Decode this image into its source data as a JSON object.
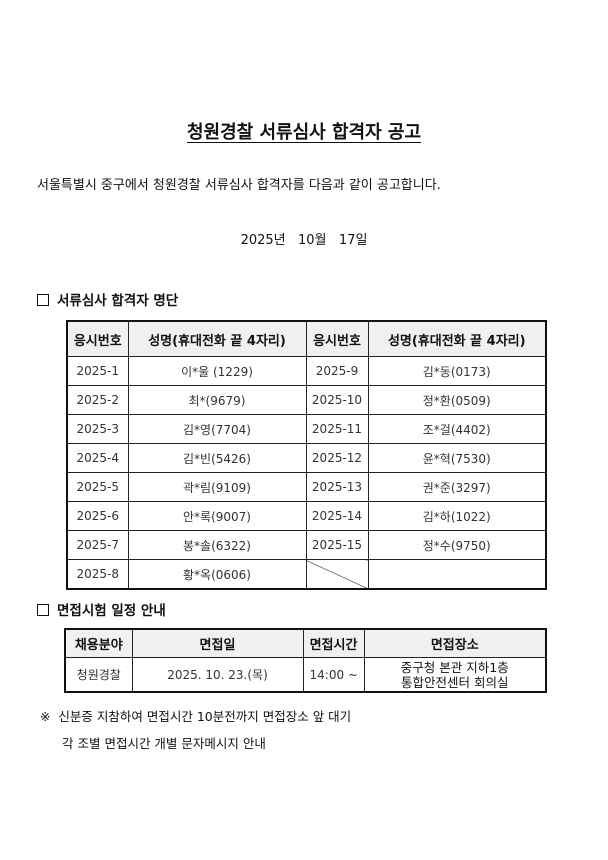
{
  "title": "청원경찰 서류심사 합격자 공고",
  "intro": "서울특별시 중구에서 청원경찰 서류심사 합격자를 다음과 같이 공고합니다.",
  "date": "2025년   10월   17일",
  "section1": {
    "heading": "서류심사 합격자 명단",
    "headers": [
      "응시번호",
      "성명(휴대전화 끝 4자리)",
      "응시번호",
      "성명(휴대전화 끝 4자리)"
    ],
    "rows": [
      [
        "2025-1",
        "이*울 (1229)",
        "2025-9",
        "김*동(0173)"
      ],
      [
        "2025-2",
        "최*(9679)",
        "2025-10",
        "정*환(0509)"
      ],
      [
        "2025-3",
        "김*영(7704)",
        "2025-11",
        "조*걸(4402)"
      ],
      [
        "2025-4",
        "김*빈(5426)",
        "2025-12",
        "윤*혁(7530)"
      ],
      [
        "2025-5",
        "곽*림(9109)",
        "2025-13",
        "권*준(3297)"
      ],
      [
        "2025-6",
        "안*록(9007)",
        "2025-14",
        "김*하(1022)"
      ],
      [
        "2025-7",
        "봉*솔(6322)",
        "2025-15",
        "정*수(9750)"
      ],
      [
        "2025-8",
        "황*옥(0606)",
        "",
        ""
      ]
    ]
  },
  "section2": {
    "heading": "면접시험 일정 안내",
    "headers": [
      "채용분야",
      "면접일",
      "면접시간",
      "면접장소"
    ],
    "row": {
      "field": "청원경찰",
      "date": "2025. 10. 23.(목)",
      "time": "14:00 ~",
      "place_line1": "중구청 본관 지하1층",
      "place_line2": "통합안전센터 회의실"
    }
  },
  "notes": [
    "※  신분증 지참하여 면접시간 10분전까지 면접장소 앞 대기",
    "각 조별 면접시간 개별 문자메시지 안내"
  ]
}
